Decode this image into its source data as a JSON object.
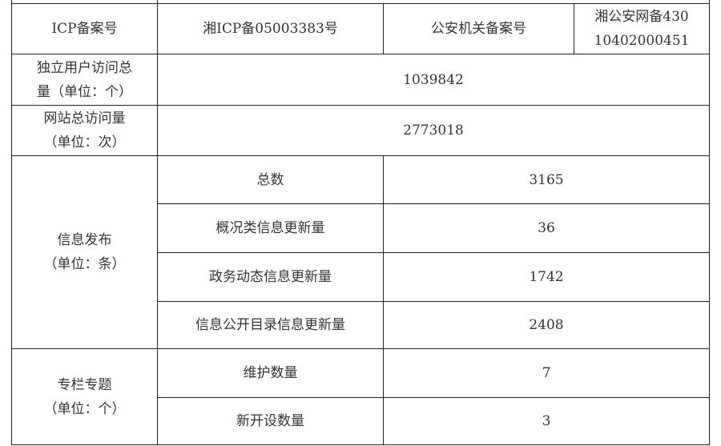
{
  "icp": {
    "label": "ICP备案号",
    "value": "湘ICP备05003383号"
  },
  "police": {
    "label": "公安机关备案号",
    "value_line1": "湘公安网备430",
    "value_line2": "10402000451"
  },
  "unique_visitors": {
    "label_line1": "独立用户访问总",
    "label_line2": "量（单位：个）",
    "value": "1039842"
  },
  "total_visits": {
    "label_line1": "网站总访问量",
    "label_line2": "（单位：次）",
    "value": "2773018"
  },
  "info_release": {
    "label_line1": "信息发布",
    "label_line2": "（单位：条）",
    "rows": [
      {
        "label": "总数",
        "value": "3165"
      },
      {
        "label": "概况类信息更新量",
        "value": "36"
      },
      {
        "label": "政务动态信息更新量",
        "value": "1742"
      },
      {
        "label": "信息公开目录信息更新量",
        "value": "2408"
      }
    ]
  },
  "columns": {
    "label_line1": "专栏专题",
    "label_line2": "（单位：个）",
    "rows": [
      {
        "label": "维护数量",
        "value": "7"
      },
      {
        "label": "新开设数量",
        "value": "3"
      }
    ]
  }
}
